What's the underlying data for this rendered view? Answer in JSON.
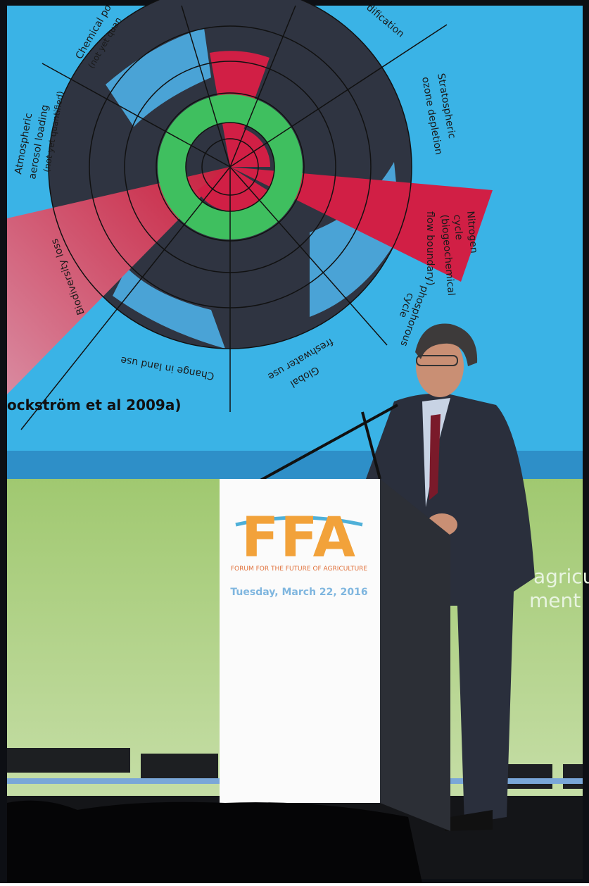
{
  "screen": {
    "labels": [
      "Chemical po",
      "(not yet quan",
      "dification",
      "Stratospheric",
      "ozone depletion",
      "Atmospheric",
      "aerosol loading",
      "(not yet quantified)",
      "Nitrogen",
      "cycle",
      "(biogeochemical",
      "flow boundary)",
      "phosphorous",
      "cycle",
      "Global",
      "freshwater use",
      "Change in land use",
      "Biodiversity loss"
    ],
    "citation": "ockström et al 2009a)"
  },
  "podium": {
    "logo": "FFA",
    "organization": "FORUM FOR THE FUTURE OF AGRICULTURE",
    "date": "Tuesday, March 22, 2016"
  },
  "backdrop": {
    "text_lines": [
      "agricu",
      "ment"
    ]
  }
}
